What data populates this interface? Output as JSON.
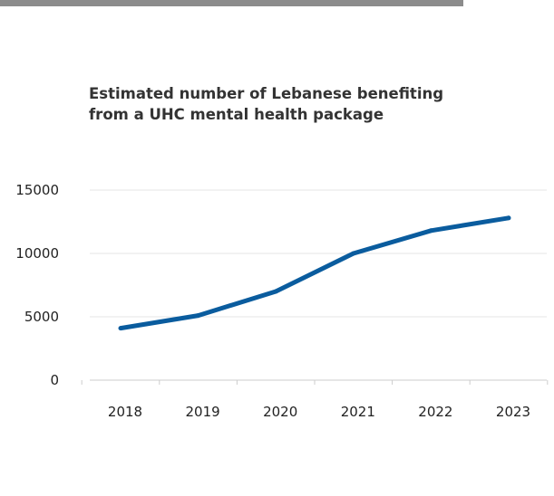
{
  "chart_data": {
    "type": "line",
    "title_lines": [
      "Estimated number of Lebanese benefiting",
      "from a UHC mental health package"
    ],
    "x": [
      "2018",
      "2019",
      "2020",
      "2021",
      "2022",
      "2023"
    ],
    "series": [
      {
        "values": [
          4100,
          5100,
          7000,
          10000,
          11800,
          12800
        ]
      }
    ],
    "yticks": [
      "0",
      "5000",
      "10000",
      "15000"
    ],
    "ylim": [
      0,
      15000
    ],
    "grid": true,
    "colors": {
      "line": "#0a5c9e",
      "grid": "#e6e6e6",
      "axis": "#cccccc"
    }
  }
}
